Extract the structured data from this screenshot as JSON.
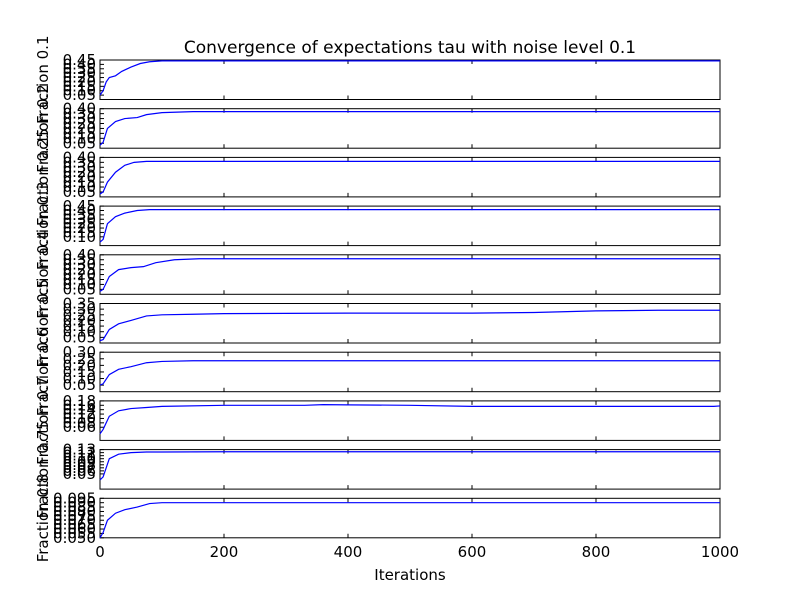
{
  "chart_data": {
    "type": "line",
    "title": "Convergence of expectations tau with noise level 0.1",
    "xlabel": "Iterations",
    "x_ticks": [
      "0",
      "200",
      "400",
      "600",
      "800",
      "1000"
    ],
    "xlim": [
      0,
      1000
    ],
    "line_color": "#0000ff",
    "grid": false,
    "panels": [
      {
        "ylabel": "Fraction 0.1",
        "ylim": [
          0.0,
          0.45
        ],
        "yticks": [
          "0.05",
          "0.10",
          "0.15",
          "0.20",
          "0.25",
          "0.30",
          "0.35",
          "0.40",
          "0.45"
        ],
        "points": [
          [
            0,
            0.05
          ],
          [
            5,
            0.1
          ],
          [
            10,
            0.2
          ],
          [
            15,
            0.25
          ],
          [
            25,
            0.27
          ],
          [
            35,
            0.32
          ],
          [
            50,
            0.37
          ],
          [
            65,
            0.41
          ],
          [
            80,
            0.43
          ],
          [
            100,
            0.44
          ],
          [
            200,
            0.44
          ],
          [
            400,
            0.44
          ],
          [
            600,
            0.44
          ],
          [
            800,
            0.44
          ],
          [
            1000,
            0.44
          ]
        ]
      },
      {
        "ylabel": "Fraction 0.2",
        "ylim": [
          0.0,
          0.4
        ],
        "yticks": [
          "0.05",
          "0.10",
          "0.15",
          "0.20",
          "0.25",
          "0.30",
          "0.35",
          "0.40"
        ],
        "points": [
          [
            0,
            0.03
          ],
          [
            5,
            0.06
          ],
          [
            12,
            0.2
          ],
          [
            25,
            0.27
          ],
          [
            40,
            0.3
          ],
          [
            60,
            0.31
          ],
          [
            75,
            0.34
          ],
          [
            100,
            0.36
          ],
          [
            150,
            0.37
          ],
          [
            200,
            0.37
          ],
          [
            400,
            0.37
          ],
          [
            600,
            0.37
          ],
          [
            800,
            0.37
          ],
          [
            1000,
            0.37
          ]
        ]
      },
      {
        "ylabel": "Fraction 0.25",
        "ylim": [
          0.0,
          0.4
        ],
        "yticks": [
          "0.05",
          "0.10",
          "0.15",
          "0.20",
          "0.25",
          "0.30",
          "0.35",
          "0.40"
        ],
        "points": [
          [
            0,
            0.03
          ],
          [
            5,
            0.05
          ],
          [
            12,
            0.15
          ],
          [
            25,
            0.25
          ],
          [
            40,
            0.32
          ],
          [
            55,
            0.35
          ],
          [
            75,
            0.36
          ],
          [
            100,
            0.36
          ],
          [
            200,
            0.36
          ],
          [
            400,
            0.36
          ],
          [
            600,
            0.36
          ],
          [
            800,
            0.36
          ],
          [
            1000,
            0.36
          ]
        ]
      },
      {
        "ylabel": "Fraction 0.3",
        "ylim": [
          0.0,
          0.45
        ],
        "yticks": [
          "0.10",
          "0.15",
          "0.20",
          "0.25",
          "0.30",
          "0.35",
          "0.40",
          "0.45"
        ],
        "points": [
          [
            0,
            0.04
          ],
          [
            5,
            0.07
          ],
          [
            12,
            0.25
          ],
          [
            25,
            0.33
          ],
          [
            40,
            0.37
          ],
          [
            60,
            0.4
          ],
          [
            80,
            0.41
          ],
          [
            100,
            0.41
          ],
          [
            200,
            0.41
          ],
          [
            400,
            0.41
          ],
          [
            600,
            0.41
          ],
          [
            800,
            0.41
          ],
          [
            1000,
            0.41
          ]
        ]
      },
      {
        "ylabel": "Fraction 0.4",
        "ylim": [
          0.0,
          0.4
        ],
        "yticks": [
          "0.05",
          "0.10",
          "0.15",
          "0.20",
          "0.25",
          "0.30",
          "0.35",
          "0.40"
        ],
        "points": [
          [
            0,
            0.03
          ],
          [
            5,
            0.05
          ],
          [
            15,
            0.18
          ],
          [
            30,
            0.25
          ],
          [
            50,
            0.27
          ],
          [
            70,
            0.28
          ],
          [
            90,
            0.32
          ],
          [
            120,
            0.35
          ],
          [
            160,
            0.36
          ],
          [
            200,
            0.36
          ],
          [
            400,
            0.36
          ],
          [
            600,
            0.36
          ],
          [
            800,
            0.36
          ],
          [
            1000,
            0.36
          ]
        ]
      },
      {
        "ylabel": "Fraction 0.5",
        "ylim": [
          0.0,
          0.35
        ],
        "yticks": [
          "0.05",
          "0.10",
          "0.15",
          "0.20",
          "0.25",
          "0.30",
          "0.35"
        ],
        "points": [
          [
            0,
            0.02
          ],
          [
            5,
            0.03
          ],
          [
            15,
            0.12
          ],
          [
            30,
            0.17
          ],
          [
            50,
            0.2
          ],
          [
            75,
            0.24
          ],
          [
            100,
            0.25
          ],
          [
            150,
            0.255
          ],
          [
            200,
            0.26
          ],
          [
            400,
            0.265
          ],
          [
            600,
            0.265
          ],
          [
            700,
            0.27
          ],
          [
            800,
            0.285
          ],
          [
            900,
            0.29
          ],
          [
            1000,
            0.29
          ]
        ]
      },
      {
        "ylabel": "Fraction 0.6",
        "ylim": [
          0.0,
          0.3
        ],
        "yticks": [
          "0.05",
          "0.10",
          "0.15",
          "0.20",
          "0.25",
          "0.30"
        ],
        "points": [
          [
            0,
            0.05
          ],
          [
            5,
            0.06
          ],
          [
            15,
            0.13
          ],
          [
            30,
            0.17
          ],
          [
            50,
            0.19
          ],
          [
            75,
            0.22
          ],
          [
            100,
            0.23
          ],
          [
            150,
            0.235
          ],
          [
            200,
            0.235
          ],
          [
            400,
            0.235
          ],
          [
            600,
            0.235
          ],
          [
            800,
            0.235
          ],
          [
            1000,
            0.235
          ]
        ]
      },
      {
        "ylabel": "Fraction 0.7",
        "ylim": [
          0.0,
          0.18
        ],
        "yticks": [
          "0.06",
          "0.08",
          "0.10",
          "0.12",
          "0.14",
          "0.16",
          "0.18"
        ],
        "points": [
          [
            0,
            0.03
          ],
          [
            5,
            0.05
          ],
          [
            15,
            0.11
          ],
          [
            30,
            0.135
          ],
          [
            50,
            0.145
          ],
          [
            75,
            0.15
          ],
          [
            100,
            0.155
          ],
          [
            200,
            0.16
          ],
          [
            330,
            0.16
          ],
          [
            360,
            0.163
          ],
          [
            400,
            0.162
          ],
          [
            500,
            0.16
          ],
          [
            600,
            0.155
          ],
          [
            700,
            0.155
          ],
          [
            800,
            0.155
          ],
          [
            990,
            0.155
          ],
          [
            1000,
            0.157
          ]
        ]
      },
      {
        "ylabel": "Fraction 0.75",
        "ylim": [
          0.0,
          0.13
        ],
        "yticks": [
          "0.05",
          "0.06",
          "0.07",
          "0.08",
          "0.09",
          "0.10",
          "0.11",
          "0.12",
          "0.13"
        ],
        "points": [
          [
            0,
            0.03
          ],
          [
            5,
            0.04
          ],
          [
            15,
            0.1
          ],
          [
            30,
            0.115
          ],
          [
            50,
            0.12
          ],
          [
            75,
            0.122
          ],
          [
            100,
            0.122
          ],
          [
            200,
            0.123
          ],
          [
            400,
            0.123
          ],
          [
            600,
            0.123
          ],
          [
            800,
            0.123
          ],
          [
            1000,
            0.123
          ]
        ]
      },
      {
        "ylabel": "Fraction 0.8",
        "ylim": [
          0.05,
          0.095
        ],
        "yticks": [
          "0.050",
          "0.055",
          "0.060",
          "0.065",
          "0.070",
          "0.075",
          "0.080",
          "0.085",
          "0.090",
          "0.095"
        ],
        "points": [
          [
            0,
            0.05
          ],
          [
            5,
            0.056
          ],
          [
            12,
            0.07
          ],
          [
            25,
            0.078
          ],
          [
            40,
            0.082
          ],
          [
            60,
            0.085
          ],
          [
            80,
            0.089
          ],
          [
            100,
            0.09
          ],
          [
            200,
            0.09
          ],
          [
            400,
            0.09
          ],
          [
            600,
            0.09
          ],
          [
            800,
            0.09
          ],
          [
            1000,
            0.09
          ]
        ]
      }
    ]
  }
}
